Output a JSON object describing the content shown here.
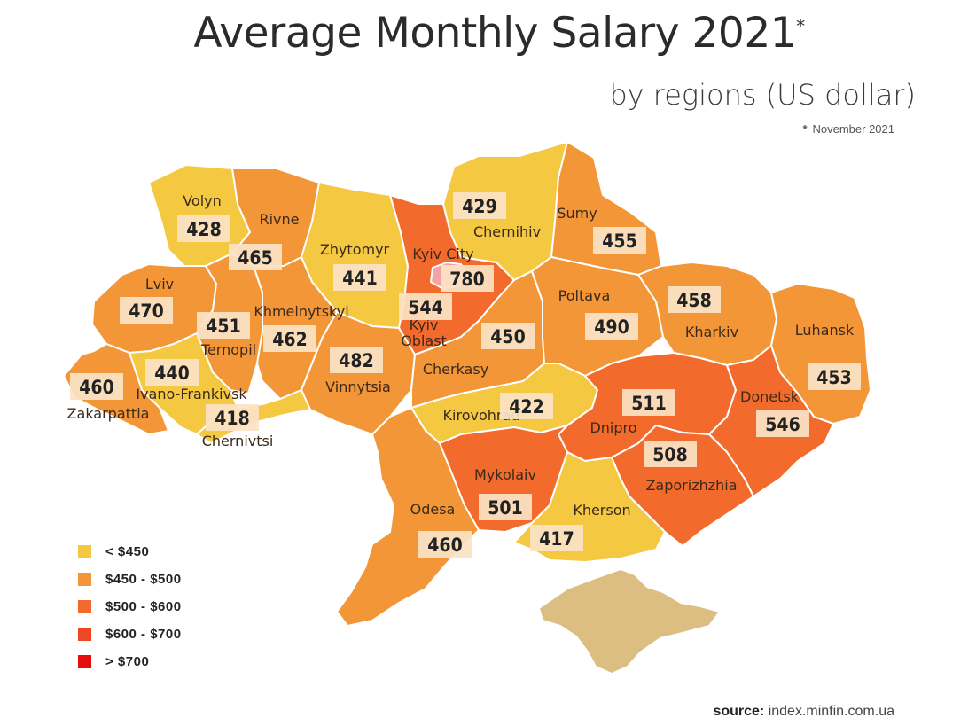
{
  "title": "Average Monthly Salary 2021",
  "title_mark": "*",
  "subtitle": "by regions (US dollar)",
  "note": {
    "mark": "*",
    "text": "November 2021"
  },
  "source": {
    "label": "source:",
    "text": "index.minfin.com.ua"
  },
  "colors": {
    "lt450": "#f5c842",
    "450_500": "#f39638",
    "500_600": "#f26a2c",
    "600_700": "#ef4623",
    "gt700": "#e60d0d",
    "crimea": "#dcbd82",
    "kyiv_city": "#f4a3a3"
  },
  "legend": [
    {
      "label": "< $450",
      "color": "#f5c842"
    },
    {
      "label": "$450 - $500",
      "color": "#f39638"
    },
    {
      "label": "$500 - $600",
      "color": "#f26a2c"
    },
    {
      "label": "$600 - $700",
      "color": "#ef4623"
    },
    {
      "label": ">  $700",
      "color": "#e60d0d"
    }
  ],
  "regions": [
    {
      "name": "Volyn",
      "value": "428",
      "category": "lt450"
    },
    {
      "name": "Rivne",
      "value": "465",
      "category": "450_500"
    },
    {
      "name": "Zhytomyr",
      "value": "441",
      "category": "lt450"
    },
    {
      "name": "Kyiv City",
      "value": "780",
      "category": "gt700"
    },
    {
      "name": "Kyiv Oblast",
      "value": "544",
      "category": "500_600"
    },
    {
      "name": "Chernihiv",
      "value": "429",
      "category": "lt450"
    },
    {
      "name": "Sumy",
      "value": "455",
      "category": "450_500"
    },
    {
      "name": "Lviv",
      "value": "470",
      "category": "450_500"
    },
    {
      "name": "Ternopil",
      "value": "451",
      "category": "450_500"
    },
    {
      "name": "Khmelnytskyi",
      "value": "462",
      "category": "450_500"
    },
    {
      "name": "Poltava",
      "value": "490",
      "category": "450_500"
    },
    {
      "name": "Kharkiv",
      "value": "458",
      "category": "450_500"
    },
    {
      "name": "Luhansk",
      "value": "453",
      "category": "450_500"
    },
    {
      "name": "Ivano-Frankivsk",
      "value": "440",
      "category": "lt450"
    },
    {
      "name": "Zakarpattia",
      "value": "460",
      "category": "450_500"
    },
    {
      "name": "Chernivtsi",
      "value": "418",
      "category": "lt450"
    },
    {
      "name": "Vinnytsia",
      "value": "482",
      "category": "450_500"
    },
    {
      "name": "Cherkasy",
      "value": "450",
      "category": "450_500"
    },
    {
      "name": "Kirovohrad",
      "value": "422",
      "category": "lt450"
    },
    {
      "name": "Dnipro",
      "value": "511",
      "category": "500_600"
    },
    {
      "name": "Donetsk",
      "value": "546",
      "category": "500_600"
    },
    {
      "name": "Zaporizhzhia",
      "value": "508",
      "category": "500_600"
    },
    {
      "name": "Mykolaiv",
      "value": "501",
      "category": "500_600"
    },
    {
      "name": "Kherson",
      "value": "417",
      "category": "lt450"
    },
    {
      "name": "Odesa",
      "value": "460",
      "category": "450_500"
    }
  ]
}
